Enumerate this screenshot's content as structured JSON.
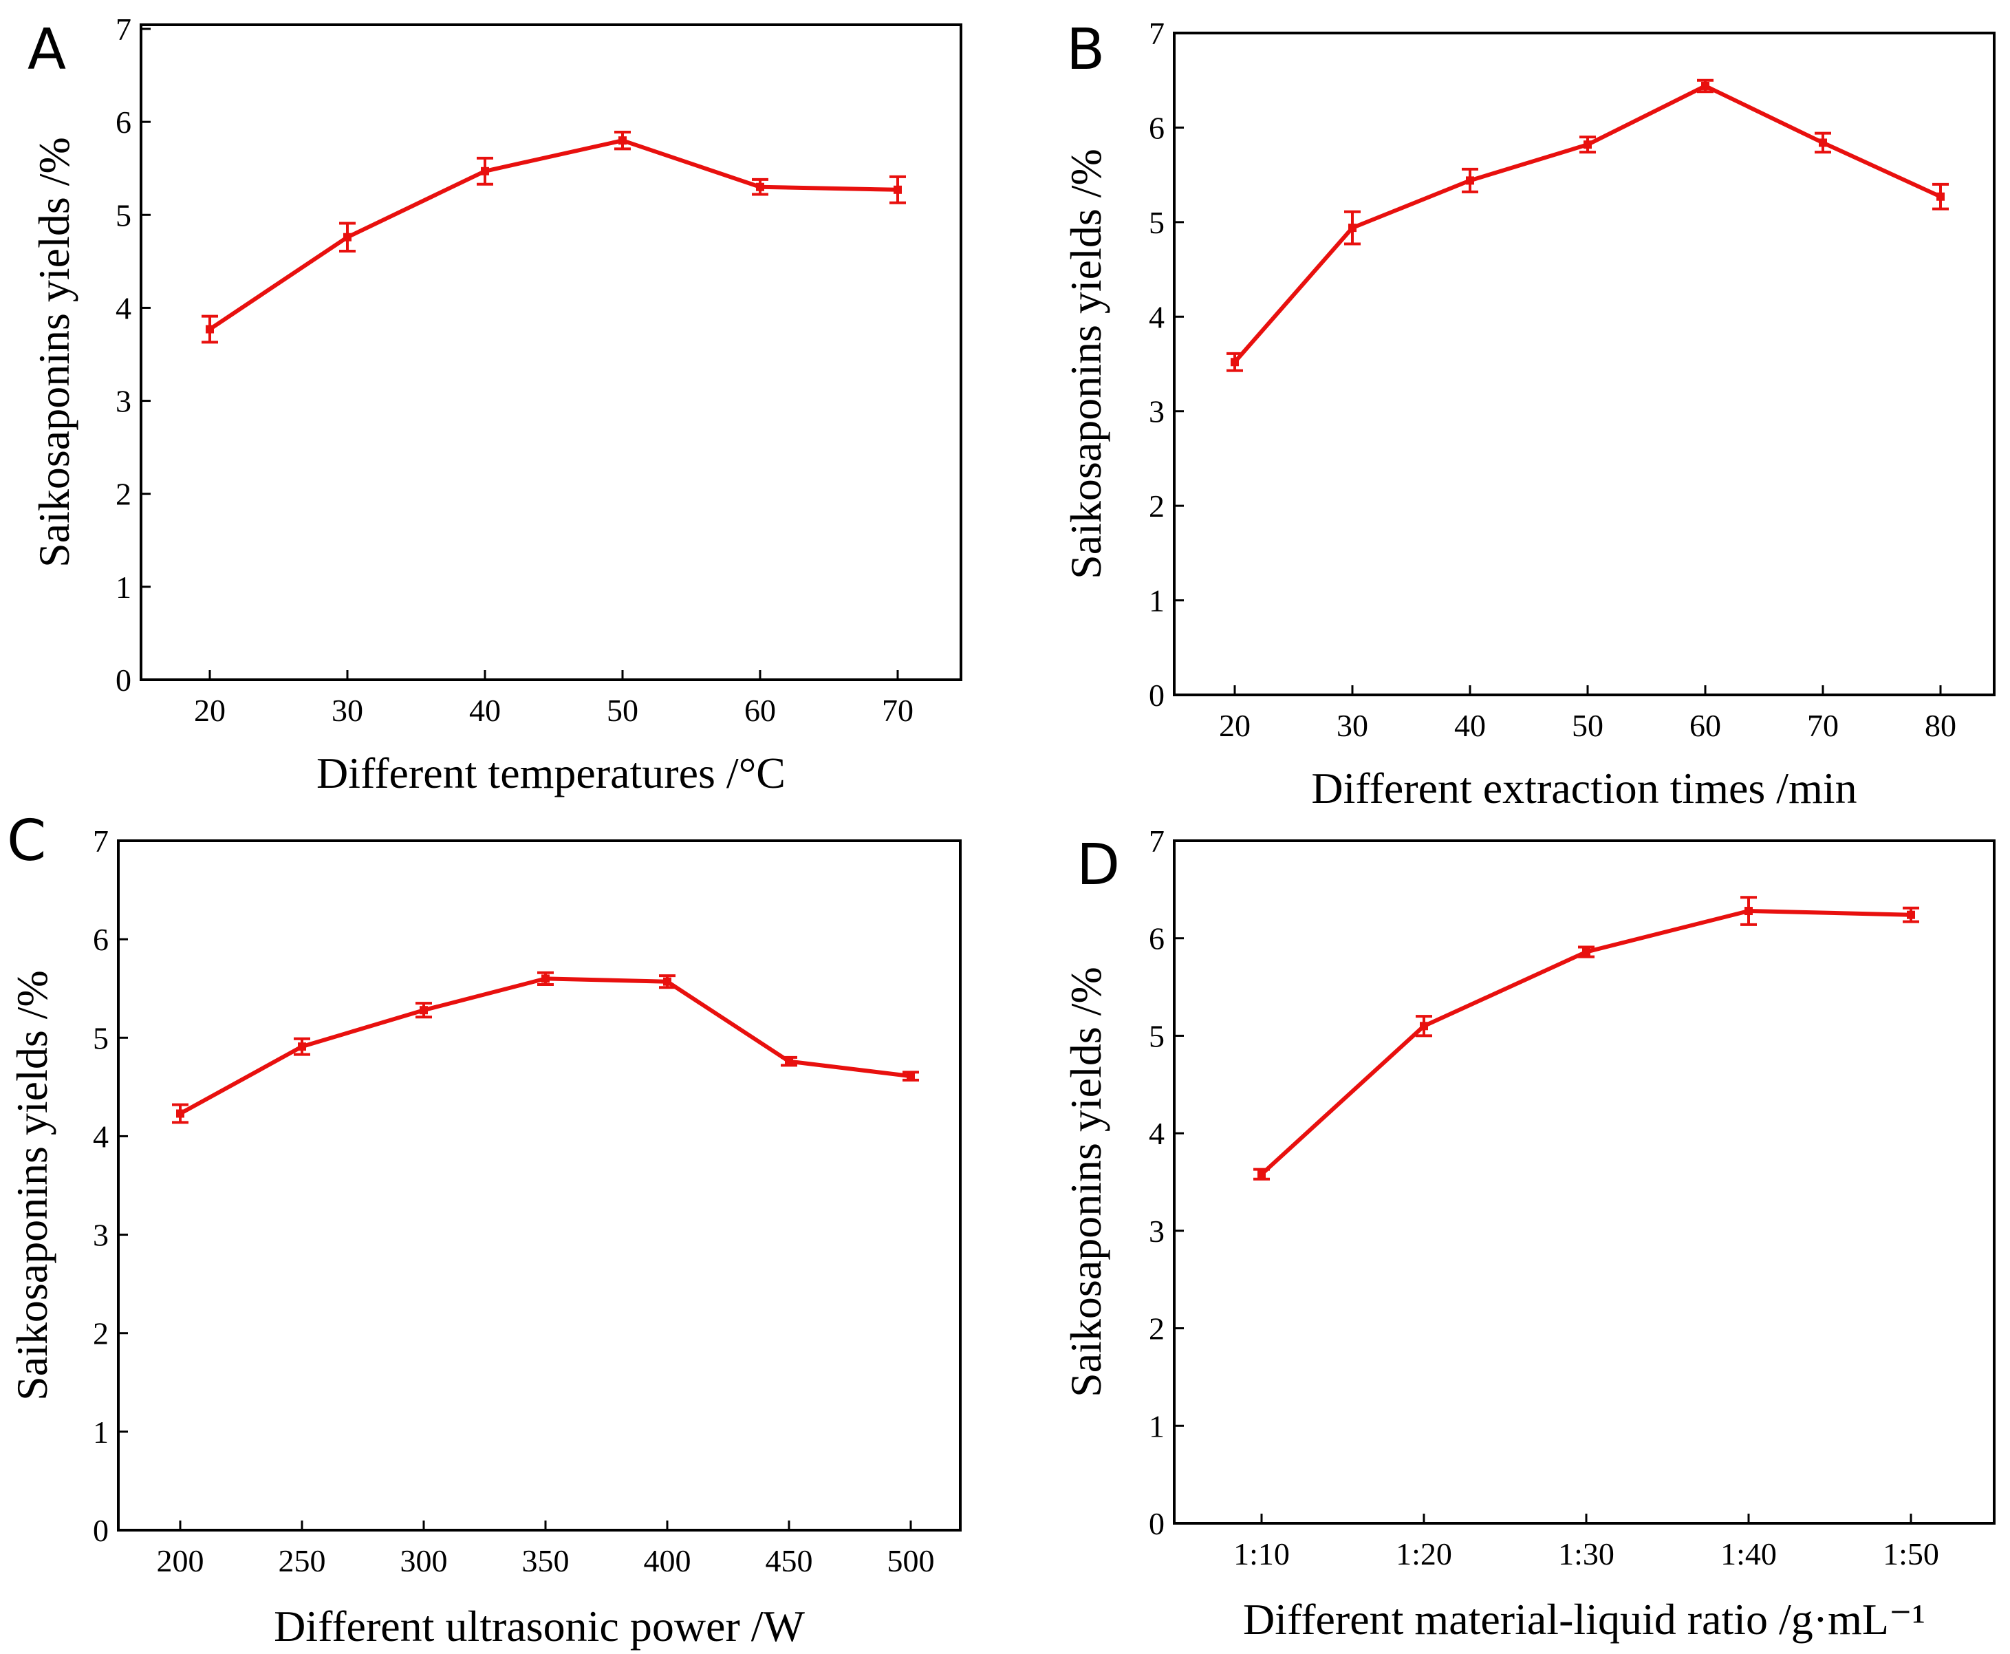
{
  "colors": {
    "series": "#e8100e",
    "axis": "#000000",
    "background": "#ffffff"
  },
  "chart_data": [
    {
      "panel": "A",
      "type": "line",
      "xlabel": "Different temperatures /°C",
      "ylabel": "Saikosaponins yields /%",
      "categories": [
        "20",
        "30",
        "40",
        "50",
        "60",
        "70"
      ],
      "values": [
        3.77,
        4.76,
        5.47,
        5.8,
        5.3,
        5.27
      ],
      "errors": [
        0.14,
        0.15,
        0.14,
        0.09,
        0.08,
        0.14
      ],
      "yticks": [
        "0",
        "1",
        "2",
        "3",
        "4",
        "5",
        "6",
        "7"
      ],
      "ylim": [
        0,
        7
      ]
    },
    {
      "panel": "B",
      "type": "line",
      "xlabel": "Different extraction times /min",
      "ylabel": "Saikosaponins yields /%",
      "categories": [
        "20",
        "30",
        "40",
        "50",
        "60",
        "70",
        "80"
      ],
      "values": [
        3.52,
        4.94,
        5.44,
        5.82,
        6.44,
        5.84,
        5.27
      ],
      "errors": [
        0.09,
        0.17,
        0.12,
        0.08,
        0.06,
        0.1,
        0.13
      ],
      "yticks": [
        "0",
        "1",
        "2",
        "3",
        "4",
        "5",
        "6",
        "7"
      ],
      "ylim": [
        0,
        7
      ]
    },
    {
      "panel": "C",
      "type": "line",
      "xlabel": "Different ultrasonic power  /W",
      "ylabel": "Saikosaponins yields /%",
      "categories": [
        "200",
        "250",
        "300",
        "350",
        "400",
        "450",
        "500"
      ],
      "values": [
        4.23,
        4.91,
        5.28,
        5.6,
        5.57,
        4.76,
        4.61
      ],
      "errors": [
        0.09,
        0.08,
        0.07,
        0.06,
        0.06,
        0.04,
        0.04
      ],
      "yticks": [
        "0",
        "1",
        "2",
        "3",
        "4",
        "5",
        "6",
        "7"
      ],
      "ylim": [
        0,
        7
      ]
    },
    {
      "panel": "D",
      "type": "line",
      "xlabel": "Different material-liquid ratio /g·mL⁻¹",
      "ylabel": "Saikosaponins yields /%",
      "categories": [
        "1:10",
        "1:20",
        "1:30",
        "1:40",
        "1:50"
      ],
      "values": [
        3.58,
        5.1,
        5.86,
        6.28,
        6.24
      ],
      "errors": [
        0.05,
        0.1,
        0.05,
        0.14,
        0.07
      ],
      "yticks": [
        "0",
        "1",
        "2",
        "3",
        "4",
        "5",
        "6",
        "7"
      ],
      "ylim": [
        0,
        7
      ]
    }
  ]
}
